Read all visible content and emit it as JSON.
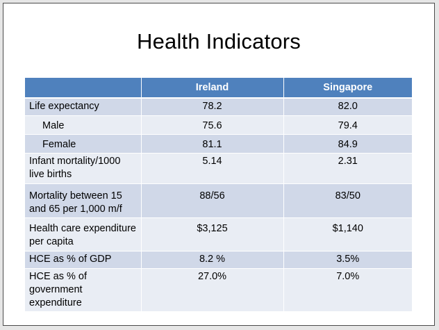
{
  "slide": {
    "title": "Health Indicators"
  },
  "table": {
    "headers": [
      "",
      "Ireland",
      "Singapore"
    ],
    "rows": [
      {
        "label": "Life expectancy",
        "ireland": "78.2",
        "singapore": "82.0"
      },
      {
        "label": "Male",
        "ireland": "75.6",
        "singapore": "79.4"
      },
      {
        "label": "Female",
        "ireland": "81.1",
        "singapore": "84.9"
      },
      {
        "label": "Infant mortality/1000 live births",
        "ireland": "5.14",
        "singapore": "2.31"
      },
      {
        "label": "Mortality between 15 and 65 per 1,000 m/f",
        "ireland": "88/56",
        "singapore": "83/50"
      },
      {
        "label": "Health care expenditure per capita",
        "ireland": "$3,125",
        "singapore": "$1,140"
      },
      {
        "label": "HCE as % of GDP",
        "ireland": "8.2 %",
        "singapore": "3.5%"
      },
      {
        "label": "HCE as % of government expenditure",
        "ireland": "27.0%",
        "singapore": "7.0%"
      }
    ]
  },
  "colors": {
    "header_bg": "#4f81bd",
    "row_dark": "#d0d8e8",
    "row_light": "#e9edf4"
  }
}
